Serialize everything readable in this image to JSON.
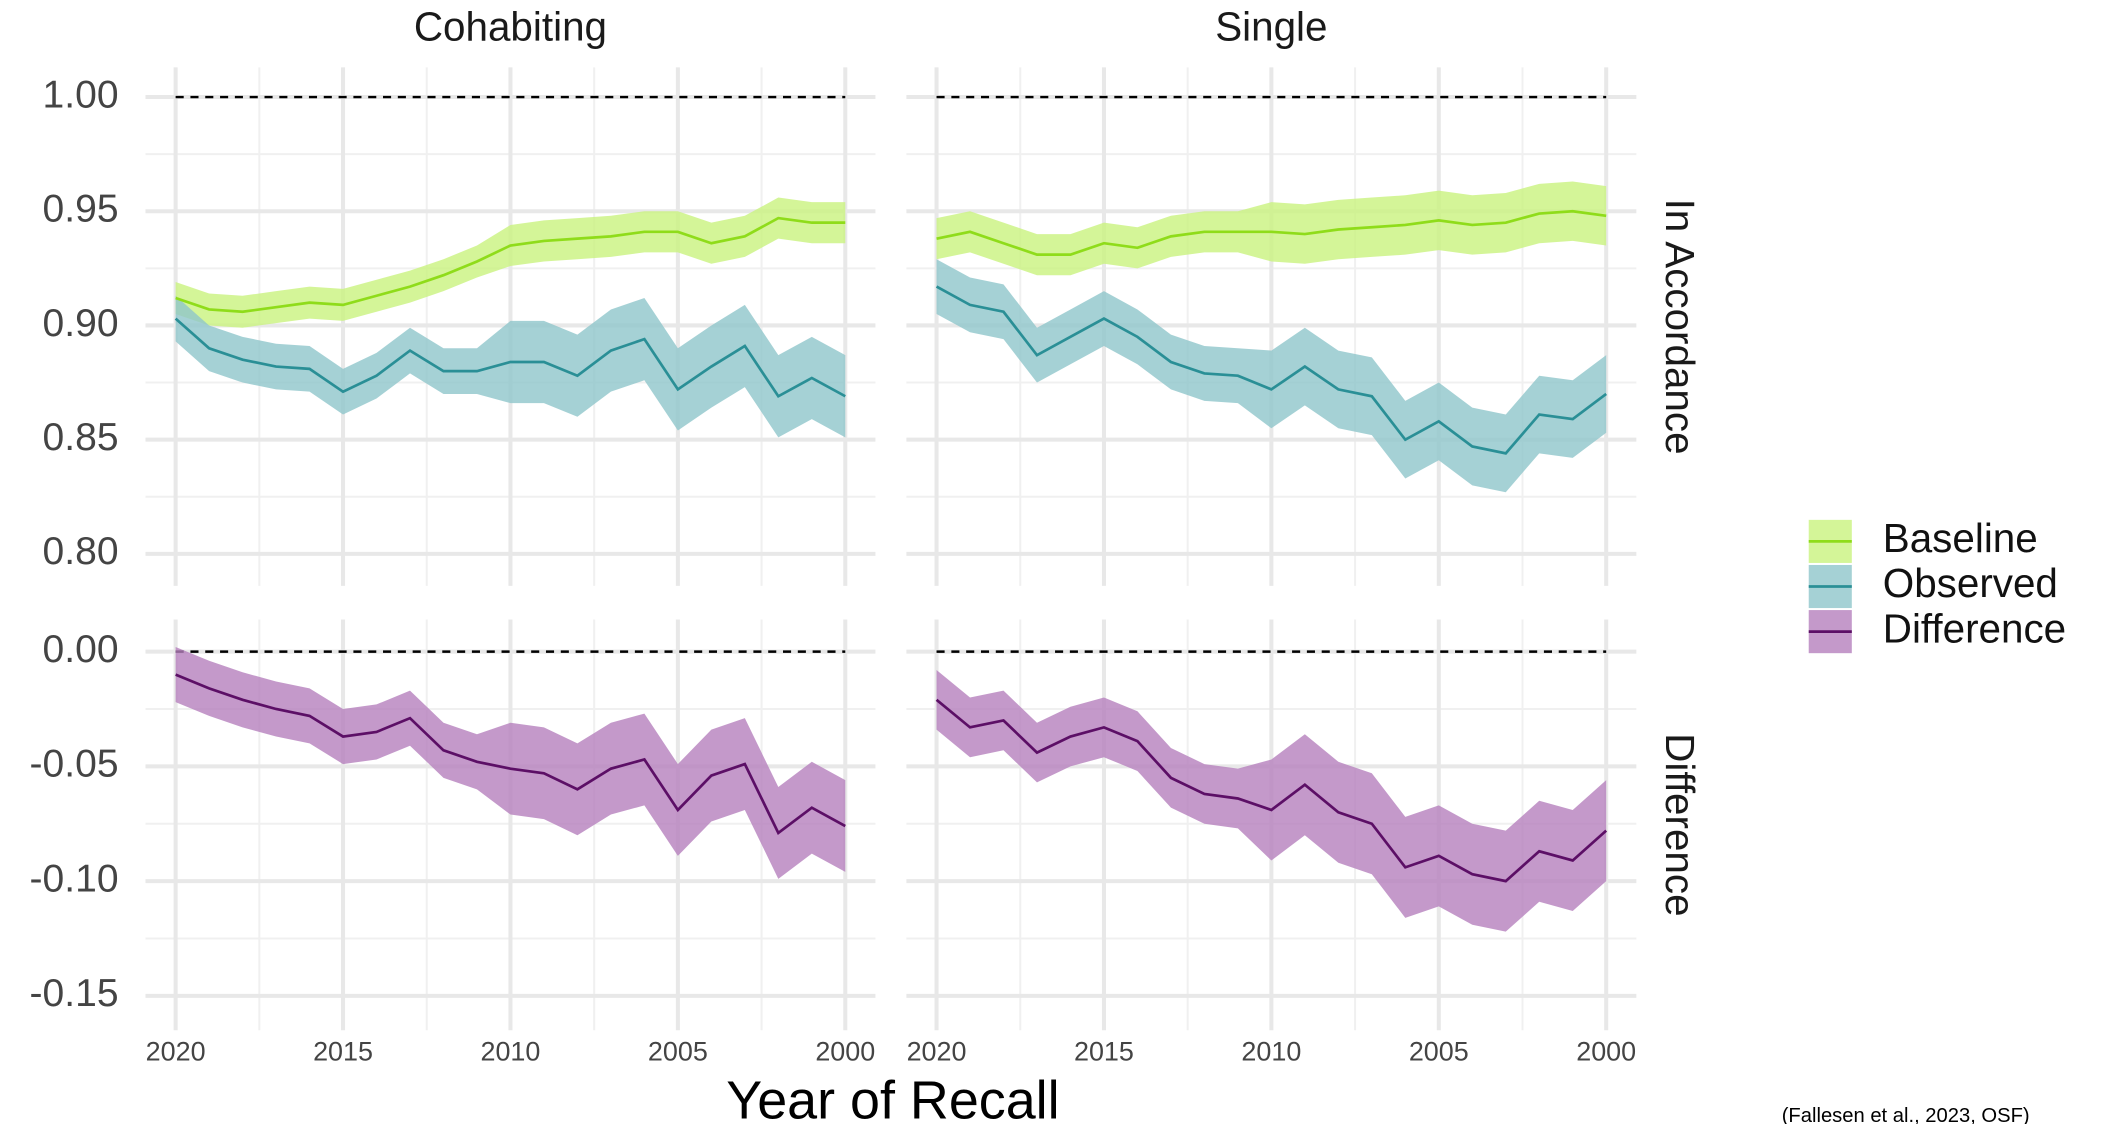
{
  "chart_data": [
    {
      "type": "line",
      "title": "Cohabiting",
      "x": [
        2020,
        2019,
        2018,
        2017,
        2016,
        2015,
        2014,
        2013,
        2012,
        2011,
        2010,
        2009,
        2008,
        2007,
        2006,
        2005,
        2004,
        2003,
        2002,
        2001,
        2000
      ],
      "xlim": [
        2020.9,
        1999.1
      ],
      "xticks": [
        2020,
        2015,
        2010,
        2005,
        2000
      ],
      "minor_xticks": [
        2017.5,
        2012.5,
        2007.5,
        2002.5
      ],
      "ylim": [
        0.786,
        1.013
      ],
      "yticks": [
        {
          "value": 0.8,
          "label": "0.80"
        },
        {
          "value": 0.85,
          "label": "0.85"
        },
        {
          "value": 0.9,
          "label": "0.90"
        },
        {
          "value": 0.95,
          "label": "0.95"
        },
        {
          "value": 1.0,
          "label": "1.00"
        }
      ],
      "minor_yticks": [
        0.825,
        0.875,
        0.925,
        0.975
      ],
      "hline": 1.0,
      "grid": true,
      "series": [
        {
          "name": "Baseline",
          "color": "#8fdc1a",
          "fill": "#c9f27e",
          "values": [
            0.912,
            0.907,
            0.906,
            0.908,
            0.91,
            0.909,
            0.913,
            0.917,
            0.922,
            0.928,
            0.935,
            0.937,
            0.938,
            0.939,
            0.941,
            0.941,
            0.936,
            0.939,
            0.947,
            0.945,
            0.945
          ],
          "lower": [
            0.905,
            0.9,
            0.899,
            0.901,
            0.903,
            0.902,
            0.906,
            0.91,
            0.915,
            0.921,
            0.926,
            0.928,
            0.929,
            0.93,
            0.932,
            0.932,
            0.927,
            0.93,
            0.938,
            0.936,
            0.936
          ],
          "upper": [
            0.919,
            0.914,
            0.913,
            0.915,
            0.917,
            0.916,
            0.92,
            0.924,
            0.929,
            0.935,
            0.944,
            0.946,
            0.947,
            0.948,
            0.95,
            0.95,
            0.945,
            0.948,
            0.956,
            0.954,
            0.954
          ]
        },
        {
          "name": "Observed",
          "color": "#2a8f96",
          "fill": "#8fc6ca",
          "values": [
            0.903,
            0.89,
            0.885,
            0.882,
            0.881,
            0.871,
            0.878,
            0.889,
            0.88,
            0.88,
            0.884,
            0.884,
            0.878,
            0.889,
            0.894,
            0.872,
            0.882,
            0.891,
            0.869,
            0.877,
            0.869
          ],
          "lower": [
            0.893,
            0.88,
            0.875,
            0.872,
            0.871,
            0.861,
            0.868,
            0.879,
            0.87,
            0.87,
            0.866,
            0.866,
            0.86,
            0.871,
            0.876,
            0.854,
            0.864,
            0.873,
            0.851,
            0.859,
            0.851
          ],
          "upper": [
            0.913,
            0.9,
            0.895,
            0.892,
            0.891,
            0.881,
            0.888,
            0.899,
            0.89,
            0.89,
            0.902,
            0.902,
            0.896,
            0.907,
            0.912,
            0.89,
            0.9,
            0.909,
            0.887,
            0.895,
            0.887
          ]
        }
      ]
    },
    {
      "type": "line",
      "title": "Single",
      "facet_row": "In Accordance",
      "x": [
        2020,
        2019,
        2018,
        2017,
        2016,
        2015,
        2014,
        2013,
        2012,
        2011,
        2010,
        2009,
        2008,
        2007,
        2006,
        2005,
        2004,
        2003,
        2002,
        2001,
        2000
      ],
      "xlim": [
        2020.9,
        1999.1
      ],
      "xticks": [
        2020,
        2015,
        2010,
        2005,
        2000
      ],
      "minor_xticks": [
        2017.5,
        2012.5,
        2007.5,
        2002.5
      ],
      "ylim": [
        0.786,
        1.013
      ],
      "yticks": [
        {
          "value": 0.8,
          "label": "0.80"
        },
        {
          "value": 0.85,
          "label": "0.85"
        },
        {
          "value": 0.9,
          "label": "0.90"
        },
        {
          "value": 0.95,
          "label": "0.95"
        },
        {
          "value": 1.0,
          "label": "1.00"
        }
      ],
      "minor_yticks": [
        0.825,
        0.875,
        0.925,
        0.975
      ],
      "hline": 1.0,
      "grid": true,
      "series": [
        {
          "name": "Baseline",
          "color": "#8fdc1a",
          "fill": "#c9f27e",
          "values": [
            0.938,
            0.941,
            0.936,
            0.931,
            0.931,
            0.936,
            0.934,
            0.939,
            0.941,
            0.941,
            0.941,
            0.94,
            0.942,
            0.943,
            0.944,
            0.946,
            0.944,
            0.945,
            0.949,
            0.95,
            0.948
          ],
          "lower": [
            0.929,
            0.932,
            0.927,
            0.922,
            0.922,
            0.927,
            0.925,
            0.93,
            0.932,
            0.932,
            0.928,
            0.927,
            0.929,
            0.93,
            0.931,
            0.933,
            0.931,
            0.932,
            0.936,
            0.937,
            0.935
          ],
          "upper": [
            0.947,
            0.95,
            0.945,
            0.94,
            0.94,
            0.945,
            0.943,
            0.948,
            0.95,
            0.95,
            0.954,
            0.953,
            0.955,
            0.956,
            0.957,
            0.959,
            0.957,
            0.958,
            0.962,
            0.963,
            0.961
          ]
        },
        {
          "name": "Observed",
          "color": "#2a8f96",
          "fill": "#8fc6ca",
          "values": [
            0.917,
            0.909,
            0.906,
            0.887,
            0.895,
            0.903,
            0.895,
            0.884,
            0.879,
            0.878,
            0.872,
            0.882,
            0.872,
            0.869,
            0.85,
            0.858,
            0.847,
            0.844,
            0.861,
            0.859,
            0.87
          ],
          "lower": [
            0.905,
            0.897,
            0.894,
            0.875,
            0.883,
            0.891,
            0.883,
            0.872,
            0.867,
            0.866,
            0.855,
            0.865,
            0.855,
            0.852,
            0.833,
            0.841,
            0.83,
            0.827,
            0.844,
            0.842,
            0.853
          ],
          "upper": [
            0.929,
            0.921,
            0.918,
            0.899,
            0.907,
            0.915,
            0.907,
            0.896,
            0.891,
            0.89,
            0.889,
            0.899,
            0.889,
            0.886,
            0.867,
            0.875,
            0.864,
            0.861,
            0.878,
            0.876,
            0.887
          ]
        }
      ]
    },
    {
      "type": "line",
      "x": [
        2020,
        2019,
        2018,
        2017,
        2016,
        2015,
        2014,
        2013,
        2012,
        2011,
        2010,
        2009,
        2008,
        2007,
        2006,
        2005,
        2004,
        2003,
        2002,
        2001,
        2000
      ],
      "xlim": [
        2020.9,
        1999.1
      ],
      "xticks": [
        2020,
        2015,
        2010,
        2005,
        2000
      ],
      "minor_xticks": [
        2017.5,
        2012.5,
        2007.5,
        2002.5
      ],
      "ylim": [
        -0.165,
        0.014
      ],
      "yticks": [
        {
          "value": -0.15,
          "label": "-0.15"
        },
        {
          "value": -0.1,
          "label": "-0.10"
        },
        {
          "value": -0.05,
          "label": "-0.05"
        },
        {
          "value": 0,
          "label": "0.00"
        }
      ],
      "minor_yticks": [
        -0.125,
        -0.075,
        -0.025
      ],
      "hline": 0,
      "grid": true,
      "series": [
        {
          "name": "Difference",
          "color": "#5c0f66",
          "fill": "#b57fbd",
          "values": [
            -0.01,
            -0.016,
            -0.021,
            -0.025,
            -0.028,
            -0.037,
            -0.035,
            -0.029,
            -0.043,
            -0.048,
            -0.051,
            -0.053,
            -0.06,
            -0.051,
            -0.047,
            -0.069,
            -0.054,
            -0.049,
            -0.079,
            -0.068,
            -0.076
          ],
          "lower": [
            -0.022,
            -0.028,
            -0.033,
            -0.037,
            -0.04,
            -0.049,
            -0.047,
            -0.041,
            -0.055,
            -0.06,
            -0.071,
            -0.073,
            -0.08,
            -0.071,
            -0.067,
            -0.089,
            -0.074,
            -0.069,
            -0.099,
            -0.088,
            -0.096
          ],
          "upper": [
            0.002,
            -0.004,
            -0.009,
            -0.013,
            -0.016,
            -0.025,
            -0.023,
            -0.017,
            -0.031,
            -0.036,
            -0.031,
            -0.033,
            -0.04,
            -0.031,
            -0.027,
            -0.049,
            -0.034,
            -0.029,
            -0.059,
            -0.048,
            -0.056
          ]
        }
      ]
    },
    {
      "type": "line",
      "facet_row": "Difference",
      "x": [
        2020,
        2019,
        2018,
        2017,
        2016,
        2015,
        2014,
        2013,
        2012,
        2011,
        2010,
        2009,
        2008,
        2007,
        2006,
        2005,
        2004,
        2003,
        2002,
        2001,
        2000
      ],
      "xlim": [
        2020.9,
        1999.1
      ],
      "xticks": [
        2020,
        2015,
        2010,
        2005,
        2000
      ],
      "minor_xticks": [
        2017.5,
        2012.5,
        2007.5,
        2002.5
      ],
      "ylim": [
        -0.165,
        0.014
      ],
      "yticks": [
        {
          "value": -0.15,
          "label": "-0.15"
        },
        {
          "value": -0.1,
          "label": "-0.10"
        },
        {
          "value": -0.05,
          "label": "-0.05"
        },
        {
          "value": 0,
          "label": "0.00"
        }
      ],
      "minor_yticks": [
        -0.125,
        -0.075,
        -0.025
      ],
      "hline": 0,
      "grid": true,
      "series": [
        {
          "name": "Difference",
          "color": "#5c0f66",
          "fill": "#b57fbd",
          "values": [
            -0.021,
            -0.033,
            -0.03,
            -0.044,
            -0.037,
            -0.033,
            -0.039,
            -0.055,
            -0.062,
            -0.064,
            -0.069,
            -0.058,
            -0.07,
            -0.075,
            -0.094,
            -0.089,
            -0.097,
            -0.1,
            -0.087,
            -0.091,
            -0.078
          ],
          "lower": [
            -0.034,
            -0.046,
            -0.043,
            -0.057,
            -0.05,
            -0.046,
            -0.052,
            -0.068,
            -0.075,
            -0.077,
            -0.091,
            -0.08,
            -0.092,
            -0.097,
            -0.116,
            -0.111,
            -0.119,
            -0.122,
            -0.109,
            -0.113,
            -0.1
          ],
          "upper": [
            -0.008,
            -0.02,
            -0.017,
            -0.031,
            -0.024,
            -0.02,
            -0.026,
            -0.042,
            -0.049,
            -0.051,
            -0.047,
            -0.036,
            -0.048,
            -0.053,
            -0.072,
            -0.067,
            -0.075,
            -0.078,
            -0.065,
            -0.069,
            -0.056
          ]
        }
      ]
    }
  ],
  "xlabel": "Year of Recall",
  "caption": "(Fallesen et al., 2023, OSF)"
}
